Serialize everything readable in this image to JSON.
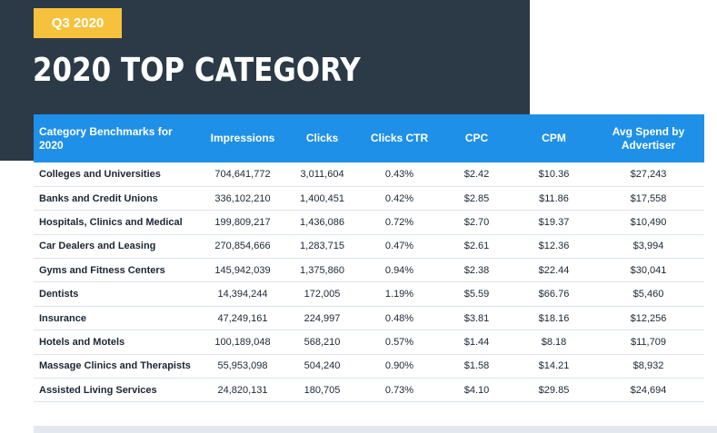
{
  "header": {
    "badge": "Q3 2020",
    "title": "2020 TOP CATEGORY"
  },
  "table": {
    "columns": [
      "Category Benchmarks for 2020",
      "Impressions",
      "Clicks",
      "Clicks CTR",
      "CPC",
      "CPM",
      "Avg Spend by Advertiser"
    ],
    "rows": [
      [
        "Colleges and Universities",
        "704,641,772",
        "3,011,604",
        "0.43%",
        "$2.42",
        "$10.36",
        "$27,243"
      ],
      [
        "Banks and Credit Unions",
        "336,102,210",
        "1,400,451",
        "0.42%",
        "$2.85",
        "$11.86",
        "$17,558"
      ],
      [
        "Hospitals, Clinics and Medical",
        "199,809,217",
        "1,436,086",
        "0.72%",
        "$2.70",
        "$19.37",
        "$10,490"
      ],
      [
        "Car Dealers and Leasing",
        "270,854,666",
        "1,283,715",
        "0.47%",
        "$2.61",
        "$12.36",
        "$3,994"
      ],
      [
        "Gyms and Fitness Centers",
        "145,942,039",
        "1,375,860",
        "0.94%",
        "$2.38",
        "$22.44",
        "$30,041"
      ],
      [
        "Dentists",
        "14,394,244",
        "172,005",
        "1.19%",
        "$5.59",
        "$66.76",
        "$5,460"
      ],
      [
        "Insurance",
        "47,249,161",
        "224,997",
        "0.48%",
        "$3.81",
        "$18.16",
        "$12,256"
      ],
      [
        "Hotels and Motels",
        "100,189,048",
        "568,210",
        "0.57%",
        "$1.44",
        "$8.18",
        "$11,709"
      ],
      [
        "Massage Clinics and Therapists",
        "55,953,098",
        "504,240",
        "0.90%",
        "$1.58",
        "$14.21",
        "$8,932"
      ],
      [
        "Assisted Living Services",
        "24,820,131",
        "180,705",
        "0.73%",
        "$4.10",
        "$29.85",
        "$24,694"
      ]
    ]
  },
  "colors": {
    "dark_panel": "#2c3a47",
    "badge": "#f6c23e",
    "table_header": "#1e90e8"
  }
}
